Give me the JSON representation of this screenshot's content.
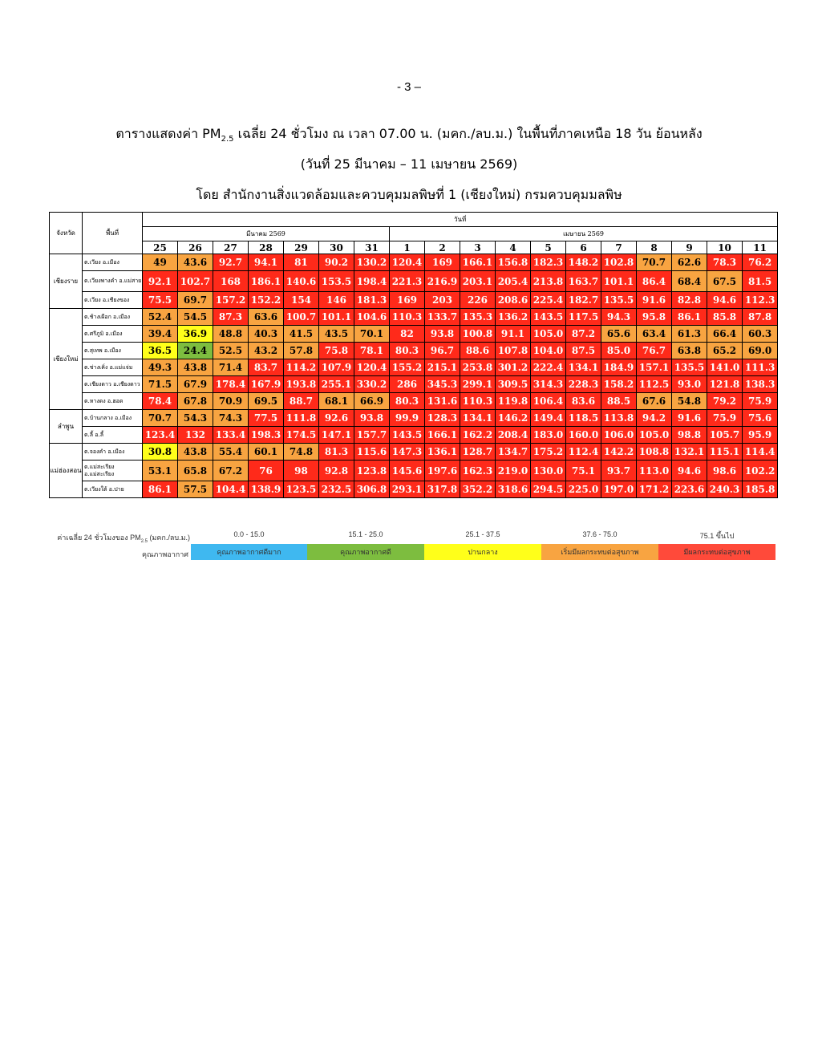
{
  "page_number": "- 3 –",
  "title_line1_a": "ตารางแสดงค่า PM",
  "title_line1_sub": "2.5",
  "title_line1_b": " เฉลี่ย 24 ชั่วโมง ณ เวลา 07.00 น. (มคก./ลบ.ม.) ในพื้นที่ภาคเหนือ 18 วัน ย้อนหลัง",
  "title_line2": "(วันที่ 25 มีนาคม – 11 เมษายน 2569)",
  "title_line3": "โดย สำนักงานสิ่งแวดล้อมและควบคุมมลพิษที่ 1 (เชียงใหม่) กรมควบคุมมลพิษ",
  "table": {
    "col_province": "จังหวัด",
    "col_station": "พื้นที่",
    "col_date": "วันที่",
    "month_march": "มีนาคม 2569",
    "month_april": "เมษายน 2569",
    "days": [
      "25",
      "26",
      "27",
      "28",
      "29",
      "30",
      "31",
      "1",
      "2",
      "3",
      "4",
      "5",
      "6",
      "7",
      "8",
      "9",
      "10",
      "11"
    ],
    "provinces": [
      "เชียงราย",
      "เชียงใหม่",
      "ลำพูน",
      "แม่ฮ่องสอน"
    ],
    "stations": [
      "ต.เวียง อ.เมือง",
      "ต.เวียงพางคำ อ.แม่สาย",
      "ต.เวียง อ.เชียงของ",
      "ต.ช้างเผือก อ.เมือง",
      "ต.ศรีภูมิ อ.เมือง",
      "ต.สุเทพ อ.เมือง",
      "ต.ช่างเคิ่ง อ.แม่แจ่ม",
      "ต.เชียงดาว อ.เชียงดาว",
      "ต.หางดง อ.ฮอด",
      "ต.บ้านกลาง อ.เมือง",
      "ต.ลี้ อ.ลี้",
      "ต.จองคำ อ.เมือง",
      "ต.แม่สะเรียง อ.แม่สะเรียง",
      "ต.เวียงใต้ อ.ปาย"
    ],
    "rows": [
      [
        "49",
        "43.6",
        "92.7",
        "94.1",
        "81",
        "90.2",
        "130.2",
        "120.4",
        "169",
        "166.1",
        "156.8",
        "182.3",
        "148.2",
        "102.8",
        "70.7",
        "62.6",
        "78.3",
        "76.2"
      ],
      [
        "92.1",
        "102.7",
        "168",
        "186.1",
        "140.6",
        "153.5",
        "198.4",
        "221.3",
        "216.9",
        "203.1",
        "205.4",
        "213.8",
        "163.7",
        "101.1",
        "86.4",
        "68.4",
        "67.5",
        "81.5"
      ],
      [
        "75.5",
        "69.7",
        "157.2",
        "152.2",
        "154",
        "146",
        "181.3",
        "169",
        "203",
        "226",
        "208.6",
        "225.4",
        "182.7",
        "135.5",
        "91.6",
        "82.8",
        "94.6",
        "112.3"
      ],
      [
        "52.4",
        "54.5",
        "87.3",
        "63.6",
        "100.7",
        "101.1",
        "104.6",
        "110.3",
        "133.7",
        "135.3",
        "136.2",
        "143.5",
        "117.5",
        "94.3",
        "95.8",
        "86.1",
        "85.8",
        "87.8"
      ],
      [
        "39.4",
        "36.9",
        "48.8",
        "40.3",
        "41.5",
        "43.5",
        "70.1",
        "82",
        "93.8",
        "100.8",
        "91.1",
        "105.0",
        "87.2",
        "65.6",
        "63.4",
        "61.3",
        "66.4",
        "60.3"
      ],
      [
        "36.5",
        "24.4",
        "52.5",
        "43.2",
        "57.8",
        "75.8",
        "78.1",
        "80.3",
        "96.7",
        "88.6",
        "107.8",
        "104.0",
        "87.5",
        "85.0",
        "76.7",
        "63.8",
        "65.2",
        "69.0"
      ],
      [
        "49.3",
        "43.8",
        "71.4",
        "83.7",
        "114.2",
        "107.9",
        "120.4",
        "155.2",
        "215.1",
        "253.8",
        "301.2",
        "222.4",
        "134.1",
        "184.9",
        "157.1",
        "135.5",
        "141.0",
        "111.3"
      ],
      [
        "71.5",
        "67.9",
        "178.4",
        "167.9",
        "193.8",
        "255.1",
        "330.2",
        "286",
        "345.3",
        "299.1",
        "309.5",
        "314.3",
        "228.3",
        "158.2",
        "112.5",
        "93.0",
        "121.8",
        "138.3"
      ],
      [
        "78.4",
        "67.8",
        "70.9",
        "69.5",
        "88.7",
        "68.1",
        "66.9",
        "80.3",
        "131.6",
        "110.3",
        "119.8",
        "106.4",
        "83.6",
        "88.5",
        "67.6",
        "54.8",
        "79.2",
        "75.9"
      ],
      [
        "70.7",
        "54.3",
        "74.3",
        "77.5",
        "111.8",
        "92.6",
        "93.8",
        "99.9",
        "128.3",
        "134.1",
        "146.2",
        "149.4",
        "118.5",
        "113.8",
        "94.2",
        "91.6",
        "75.9",
        "75.6"
      ],
      [
        "123.4",
        "132",
        "133.4",
        "198.3",
        "174.5",
        "147.1",
        "157.7",
        "143.5",
        "166.1",
        "162.2",
        "208.4",
        "183.0",
        "160.0",
        "106.0",
        "105.0",
        "98.8",
        "105.7",
        "95.9"
      ],
      [
        "30.8",
        "43.8",
        "55.4",
        "60.1",
        "74.8",
        "81.3",
        "115.6",
        "147.3",
        "136.1",
        "128.7",
        "134.7",
        "175.2",
        "112.4",
        "142.2",
        "108.8",
        "132.1",
        "115.1",
        "114.4"
      ],
      [
        "53.1",
        "65.8",
        "67.2",
        "76",
        "98",
        "92.8",
        "123.8",
        "145.6",
        "197.6",
        "162.3",
        "219.0",
        "130.0",
        "75.1",
        "93.7",
        "113.0",
        "94.6",
        "98.6",
        "102.2"
      ],
      [
        "86.1",
        "57.5",
        "104.4",
        "138.9",
        "123.5",
        "232.5",
        "306.8",
        "293.1",
        "317.8",
        "352.2",
        "318.6",
        "294.5",
        "225.0",
        "197.0",
        "171.2",
        "223.6",
        "240.3",
        "185.8"
      ]
    ]
  },
  "legend": {
    "caption_a": "ค่าเฉลี่ย 24 ชั่วโมงของ PM",
    "caption_sub": "2.5",
    "caption_b": " (มคก./ลบ.ม.)",
    "quality_label": "คุณภาพอากาศ",
    "ranges": [
      "0.0 - 15.0",
      "15.1 - 25.0",
      "25.1 - 37.5",
      "37.6 - 75.0",
      "75.1 ขึ้นไป"
    ],
    "levels": [
      "คุณภาพอากาศดีมาก",
      "คุณภาพอากาศดี",
      "ปานกลาง",
      "เริ่มมีผลกระทบต่อสุขภาพ",
      "มีผลกระทบต่อสุขภาพ"
    ],
    "colors": [
      "#3fb8f0",
      "#7dbd3f",
      "#ffff1a",
      "#f8a441",
      "#ff4a3a"
    ]
  }
}
